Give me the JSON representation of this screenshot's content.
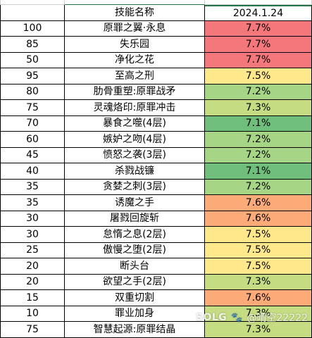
{
  "table": {
    "partial_row": {
      "c1": "",
      "c2": "",
      "c3": ""
    },
    "header": {
      "c1": "",
      "c2": "技能名称",
      "c3": "2024.1.24"
    },
    "rows": [
      {
        "level": "100",
        "skill": "原罪之翼·永息",
        "rate": "7.7%",
        "color": "#f4777c"
      },
      {
        "level": "85",
        "skill": "失乐园",
        "rate": "7.7%",
        "color": "#f4777c"
      },
      {
        "level": "50",
        "skill": "净化之花",
        "rate": "7.7%",
        "color": "#f4777c"
      },
      {
        "level": "95",
        "skill": "至高之刑",
        "rate": "7.5%",
        "color": "#fee88b"
      },
      {
        "level": "80",
        "skill": "肋骨重塑:原罪战矛",
        "rate": "7.2%",
        "color": "#a6d585"
      },
      {
        "level": "75",
        "skill": "灵魂烙印:原罪冲击",
        "rate": "7.3%",
        "color": "#c5dc82"
      },
      {
        "level": "70",
        "skill": "暴食之噬(4层)",
        "rate": "7.1%",
        "color": "#6fbe7c"
      },
      {
        "level": "60",
        "skill": "嫉妒之吻(4层)",
        "rate": "7.2%",
        "color": "#a6d585"
      },
      {
        "level": "45",
        "skill": "愤怒之袭(3层)",
        "rate": "7.2%",
        "color": "#a6d585"
      },
      {
        "level": "40",
        "skill": "杀戮战镰",
        "rate": "7.1%",
        "color": "#6fbe7c"
      },
      {
        "level": "35",
        "skill": "贪婪之刺(3层)",
        "rate": "7.2%",
        "color": "#a6d585"
      },
      {
        "level": "35",
        "skill": "诱魔之手",
        "rate": "7.6%",
        "color": "#fbaa78"
      },
      {
        "level": "30",
        "skill": "屠戮回旋斩",
        "rate": "7.6%",
        "color": "#fbaa78"
      },
      {
        "level": "30",
        "skill": "怠惰之息(2层)",
        "rate": "7.5%",
        "color": "#fee88b"
      },
      {
        "level": "25",
        "skill": "傲慢之堕(2层)",
        "rate": "7.5%",
        "color": "#fee88b"
      },
      {
        "level": "20",
        "skill": "断头台",
        "rate": "7.5%",
        "color": "#fee88b"
      },
      {
        "level": "20",
        "skill": "欲望之手(2层)",
        "rate": "7.3%",
        "color": "#c5dc82"
      },
      {
        "level": "15",
        "skill": "双重切割",
        "rate": "7.6%",
        "color": "#fbaa78"
      },
      {
        "level": "10",
        "skill": "罪业加身",
        "rate": "7.3%",
        "color": "#c5dc82"
      },
      {
        "level": "75",
        "skill": "智慧起源:原罪结晶",
        "rate": "7.3%",
        "color": "#c5dc82"
      }
    ]
  },
  "watermark": {
    "logo": "SOLG",
    "paw": "🐾",
    "handle": "@晴空22222"
  }
}
